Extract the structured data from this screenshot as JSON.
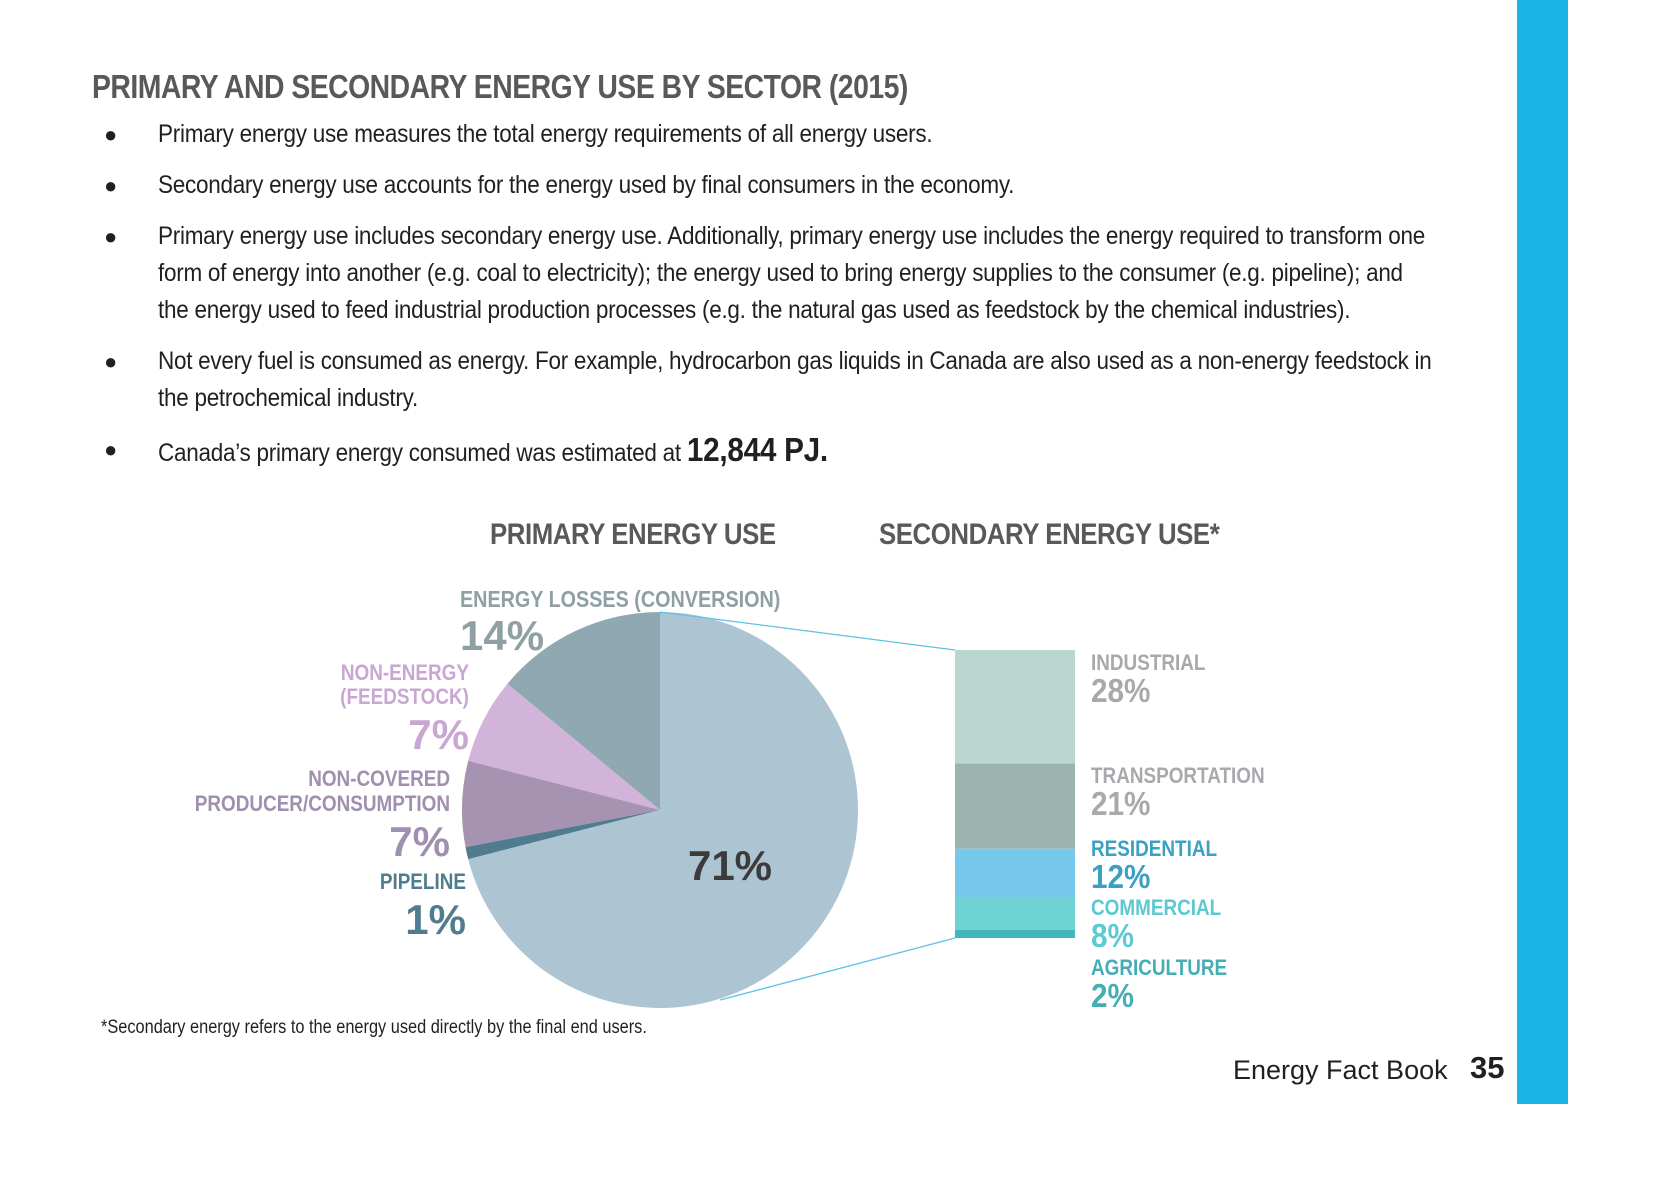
{
  "page": {
    "title": "PRIMARY AND SECONDARY ENERGY USE BY SECTOR (2015)",
    "bullets": [
      "Primary energy use measures the total energy requirements of all energy users.",
      "Secondary energy use accounts for the energy used by final consumers in the economy.",
      "Primary energy use includes secondary energy use. Additionally, primary energy use includes the energy required to transform one form of energy into another (e.g. coal to electricity); the energy used to bring energy supplies to the consumer (e.g. pipeline); and the energy used to feed industrial production processes (e.g. the natural gas used as feedstock by the chemical industries).",
      "Not every fuel is consumed as energy. For example, hydrocarbon gas liquids in Canada are also used as a non-energy feedstock in the petrochemical industry."
    ],
    "last_bullet_prefix": "Canada’s primary energy consumed was estimated at ",
    "last_bullet_value": "12,844 PJ.",
    "footnote": "*Secondary energy refers to the energy used directly by the final end users.",
    "footer_book": "Energy Fact Book",
    "footer_page": "35",
    "accent_color": "#1cb5e6"
  },
  "chart_data": [
    {
      "type": "pie",
      "title": "PRIMARY ENERGY USE",
      "slices": [
        {
          "name": "ENERGY LOSSES (CONVERSION)",
          "value": 14,
          "label": "14%",
          "color": "#8fa8b1",
          "label_color": "#8fa0a4"
        },
        {
          "name": "NON-ENERGY (FEEDSTOCK)",
          "lines": [
            "NON-ENERGY",
            "(FEEDSTOCK)"
          ],
          "value": 7,
          "label": "7%",
          "color": "#d2b3d9",
          "label_color": "#caa6d3"
        },
        {
          "name": "NON-COVERED PRODUCER/CONSUMPTION",
          "lines": [
            "NON-COVERED",
            "PRODUCER/CONSUMPTION"
          ],
          "value": 7,
          "label": "7%",
          "color": "#a693b1",
          "label_color": "#a08fae"
        },
        {
          "name": "PIPELINE",
          "value": 1,
          "label": "1%",
          "color": "#4f7d8f",
          "label_color": "#4f7d8f"
        },
        {
          "name": "SECONDARY ENERGY USE",
          "value": 71,
          "label": "71%",
          "color": "#adc5d3",
          "label_color": "#3b3b3b"
        }
      ]
    },
    {
      "type": "bar",
      "title": "SECONDARY ENERGY USE*",
      "stacked": true,
      "categories": [
        "INDUSTRIAL",
        "TRANSPORTATION",
        "RESIDENTIAL",
        "COMMERCIAL",
        "AGRICULTURE"
      ],
      "values": [
        28,
        21,
        12,
        8,
        2
      ],
      "labels": [
        "28%",
        "21%",
        "12%",
        "8%",
        "2%"
      ],
      "colors": [
        "#bad6d1",
        "#9bb5ae",
        "#75c8ea",
        "#6fd3d4",
        "#45b5bd"
      ],
      "label_colors": [
        "#a7a9ac",
        "#a7a9ac",
        "#3ba0c2",
        "#5cc9d3",
        "#45aeb5"
      ]
    }
  ]
}
